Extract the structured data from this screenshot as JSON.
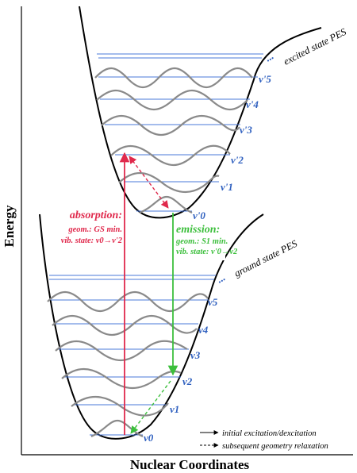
{
  "axes": {
    "y_title": "Energy",
    "x_title": "Nuclear Coordinates"
  },
  "curves": {
    "excited_label": "excited state PES",
    "ground_label": "ground state PES"
  },
  "excited_levels": [
    "ν'0",
    "ν'1",
    "ν'2",
    "ν'3",
    "ν'4",
    "ν'5"
  ],
  "ground_levels": [
    "ν0",
    "ν1",
    "ν2",
    "ν3",
    "ν4",
    "ν5"
  ],
  "absorption": {
    "heading": "absorption:",
    "geom_line": "geom.: GS min.",
    "vib_line": "vib. state: ν0→ν'2"
  },
  "emission": {
    "heading": "emission:",
    "geom_line": "geom.: S1 min.",
    "vib_line": "vib. state: ν'0→ν2"
  },
  "legend": {
    "solid": "initial excitation/dexcitation",
    "dashed": "subsequent geometry relaxation"
  },
  "ellipsis": "...",
  "colors": {
    "absorption": "#e0294c",
    "emission": "#3cbf3c",
    "level": "#2e5fbf",
    "wave": "#8a8a8a",
    "curve": "#000000"
  }
}
